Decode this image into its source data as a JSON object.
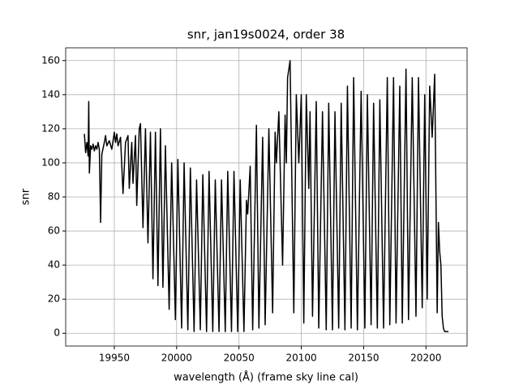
{
  "chart_data": {
    "type": "line",
    "title": "snr, jan19s0024, order 38",
    "x_label": "wavelength (Å) (frame sky line cal)",
    "y_label": "snr",
    "xlim": [
      19911,
      20233
    ],
    "ylim": [
      -7.5,
      167.5
    ],
    "xticks": [
      19950,
      20000,
      20050,
      20100,
      20150,
      20200
    ],
    "yticks": [
      0,
      20,
      40,
      60,
      80,
      100,
      120,
      140,
      160
    ],
    "grid": true,
    "series": [
      {
        "color": "#000000",
        "x": [
          19926,
          19927,
          19928,
          19929,
          19929.5,
          19930,
          19931,
          19932,
          19933,
          19934,
          19935,
          19936,
          19937,
          19938,
          19939,
          19940,
          19942,
          19943,
          19944,
          19946,
          19948,
          19950,
          19951,
          19952,
          19953,
          19955,
          19957,
          19959,
          19961,
          19962,
          19964,
          19965,
          19967,
          19968,
          19970,
          19971,
          19973,
          19975,
          19977,
          19979,
          19981,
          19983,
          19985,
          19987,
          19989,
          19991,
          19994,
          19996,
          19999,
          20001,
          20004,
          20006,
          20009,
          20011,
          20014,
          20016,
          20019,
          20021,
          20024,
          20026,
          20029,
          20031,
          20034,
          20036,
          20039,
          20041,
          20044,
          20046,
          20049,
          20051,
          20054,
          20056,
          20057,
          20059,
          20061,
          20064,
          20066,
          20069,
          20071,
          20074,
          20077,
          20079,
          20080,
          20082,
          20085,
          20087,
          20088,
          20089,
          20091,
          20094,
          20096,
          20098,
          20100,
          20102,
          20104,
          20106,
          20107,
          20109,
          20112,
          20114,
          20117,
          20120,
          20122,
          20125,
          20127,
          20130,
          20132,
          20135,
          20137,
          20140,
          20142,
          20145,
          20148,
          20151,
          20153,
          20156,
          20158,
          20161,
          20163,
          20166,
          20169,
          20171,
          20174,
          20176,
          20179,
          20181,
          20184,
          20186,
          20189,
          20192,
          20194,
          20197,
          20199,
          20201,
          20203,
          20205,
          20207,
          20209,
          20210,
          20211,
          20212,
          20213,
          20214,
          20215,
          20218
        ],
        "values": [
          117,
          106,
          112,
          104,
          136,
          94,
          110,
          108,
          111,
          107,
          110,
          108,
          112,
          108,
          65,
          105,
          112,
          116,
          110,
          113,
          108,
          118,
          112,
          117,
          110,
          115,
          82,
          112,
          116,
          85,
          112,
          88,
          116,
          75,
          120,
          123,
          62,
          120,
          53,
          118,
          32,
          118,
          28,
          120,
          27,
          110,
          14,
          100,
          8,
          102,
          3,
          100,
          2,
          97,
          1,
          90,
          2,
          93,
          1,
          95,
          1,
          90,
          1,
          90,
          1,
          95,
          1,
          95,
          1,
          90,
          1,
          78,
          70,
          98,
          2,
          122,
          3,
          115,
          5,
          120,
          12,
          118,
          100,
          130,
          40,
          128,
          100,
          150,
          160,
          12,
          140,
          100,
          140,
          6,
          140,
          85,
          130,
          10,
          136,
          3,
          130,
          2,
          135,
          2,
          130,
          3,
          135,
          2,
          145,
          3,
          150,
          2,
          142,
          3,
          140,
          5,
          135,
          3,
          137,
          3,
          150,
          5,
          150,
          6,
          145,
          6,
          155,
          8,
          150,
          10,
          150,
          15,
          140,
          20,
          145,
          115,
          152,
          12,
          65,
          48,
          40,
          10,
          3,
          1,
          1
        ]
      }
    ]
  }
}
